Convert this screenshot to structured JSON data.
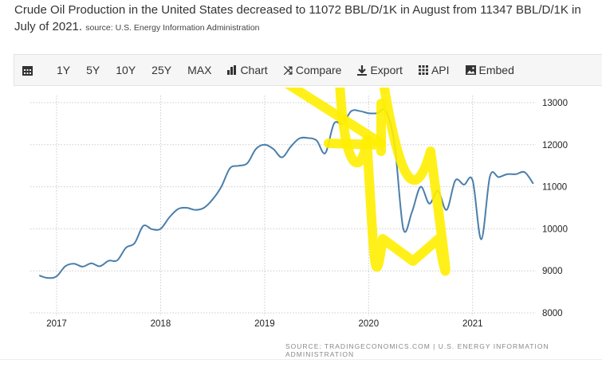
{
  "description": {
    "text": "Crude Oil Production in the United States decreased to 11072 BBL/D/1K in August from 11347 BBL/D/1K in",
    "text2": "July of 2021.",
    "source": "source: U.S. Energy Information Administration"
  },
  "toolbar": {
    "items": [
      {
        "icon": "calendar-icon",
        "label": ""
      },
      {
        "label": "1Y"
      },
      {
        "label": "5Y"
      },
      {
        "label": "10Y"
      },
      {
        "label": "25Y"
      },
      {
        "label": "MAX"
      },
      {
        "icon": "bar-chart-icon",
        "label": "Chart"
      },
      {
        "icon": "shuffle-icon",
        "label": "Compare"
      },
      {
        "icon": "download-icon",
        "label": "Export"
      },
      {
        "icon": "grid-icon",
        "label": "API"
      },
      {
        "icon": "image-icon",
        "label": "Embed"
      }
    ]
  },
  "footer_source": "SOURCE: TRADINGECONOMICS.COM  |  U.S. ENERGY INFORMATION ADMINISTRATION",
  "chart_data": {
    "type": "line",
    "title": "",
    "xlabel": "",
    "ylabel": "",
    "ylim": [
      8000,
      13000
    ],
    "yticks": [
      "8000",
      "9000",
      "10000",
      "11000",
      "12000",
      "13000"
    ],
    "xticks": [
      "2017",
      "2018",
      "2019",
      "2020",
      "2021"
    ],
    "grid": true,
    "y_axis_side": "right",
    "line_color": "#4a7fab",
    "annotation_color": "#ffee00",
    "start": "2016-11",
    "x": [
      "2016-11",
      "2016-12",
      "2017-01",
      "2017-02",
      "2017-03",
      "2017-04",
      "2017-05",
      "2017-06",
      "2017-07",
      "2017-08",
      "2017-09",
      "2017-10",
      "2017-11",
      "2017-12",
      "2018-01",
      "2018-02",
      "2018-03",
      "2018-04",
      "2018-05",
      "2018-06",
      "2018-07",
      "2018-08",
      "2018-09",
      "2018-10",
      "2018-11",
      "2018-12",
      "2019-01",
      "2019-02",
      "2019-03",
      "2019-04",
      "2019-05",
      "2019-06",
      "2019-07",
      "2019-08",
      "2019-09",
      "2019-10",
      "2019-11",
      "2019-12",
      "2020-01",
      "2020-02",
      "2020-03",
      "2020-04",
      "2020-05",
      "2020-06",
      "2020-07",
      "2020-08",
      "2020-09",
      "2020-10",
      "2020-11",
      "2020-12",
      "2021-01",
      "2021-02",
      "2021-03",
      "2021-04",
      "2021-05",
      "2021-06",
      "2021-07",
      "2021-08"
    ],
    "values": [
      8890,
      8830,
      8870,
      9110,
      9170,
      9100,
      9180,
      9110,
      9240,
      9250,
      9550,
      9660,
      10070,
      9990,
      10000,
      10270,
      10470,
      10500,
      10450,
      10500,
      10700,
      11000,
      11440,
      11500,
      11560,
      11900,
      12000,
      11900,
      11700,
      11950,
      12150,
      12160,
      12100,
      11800,
      12500,
      12500,
      12800,
      12800,
      12750,
      12750,
      12800,
      12000,
      10000,
      10400,
      11000,
      10600,
      10900,
      10450,
      11150,
      11050,
      11150,
      9750,
      11250,
      11230,
      11300,
      11300,
      11347,
      11072
    ]
  }
}
